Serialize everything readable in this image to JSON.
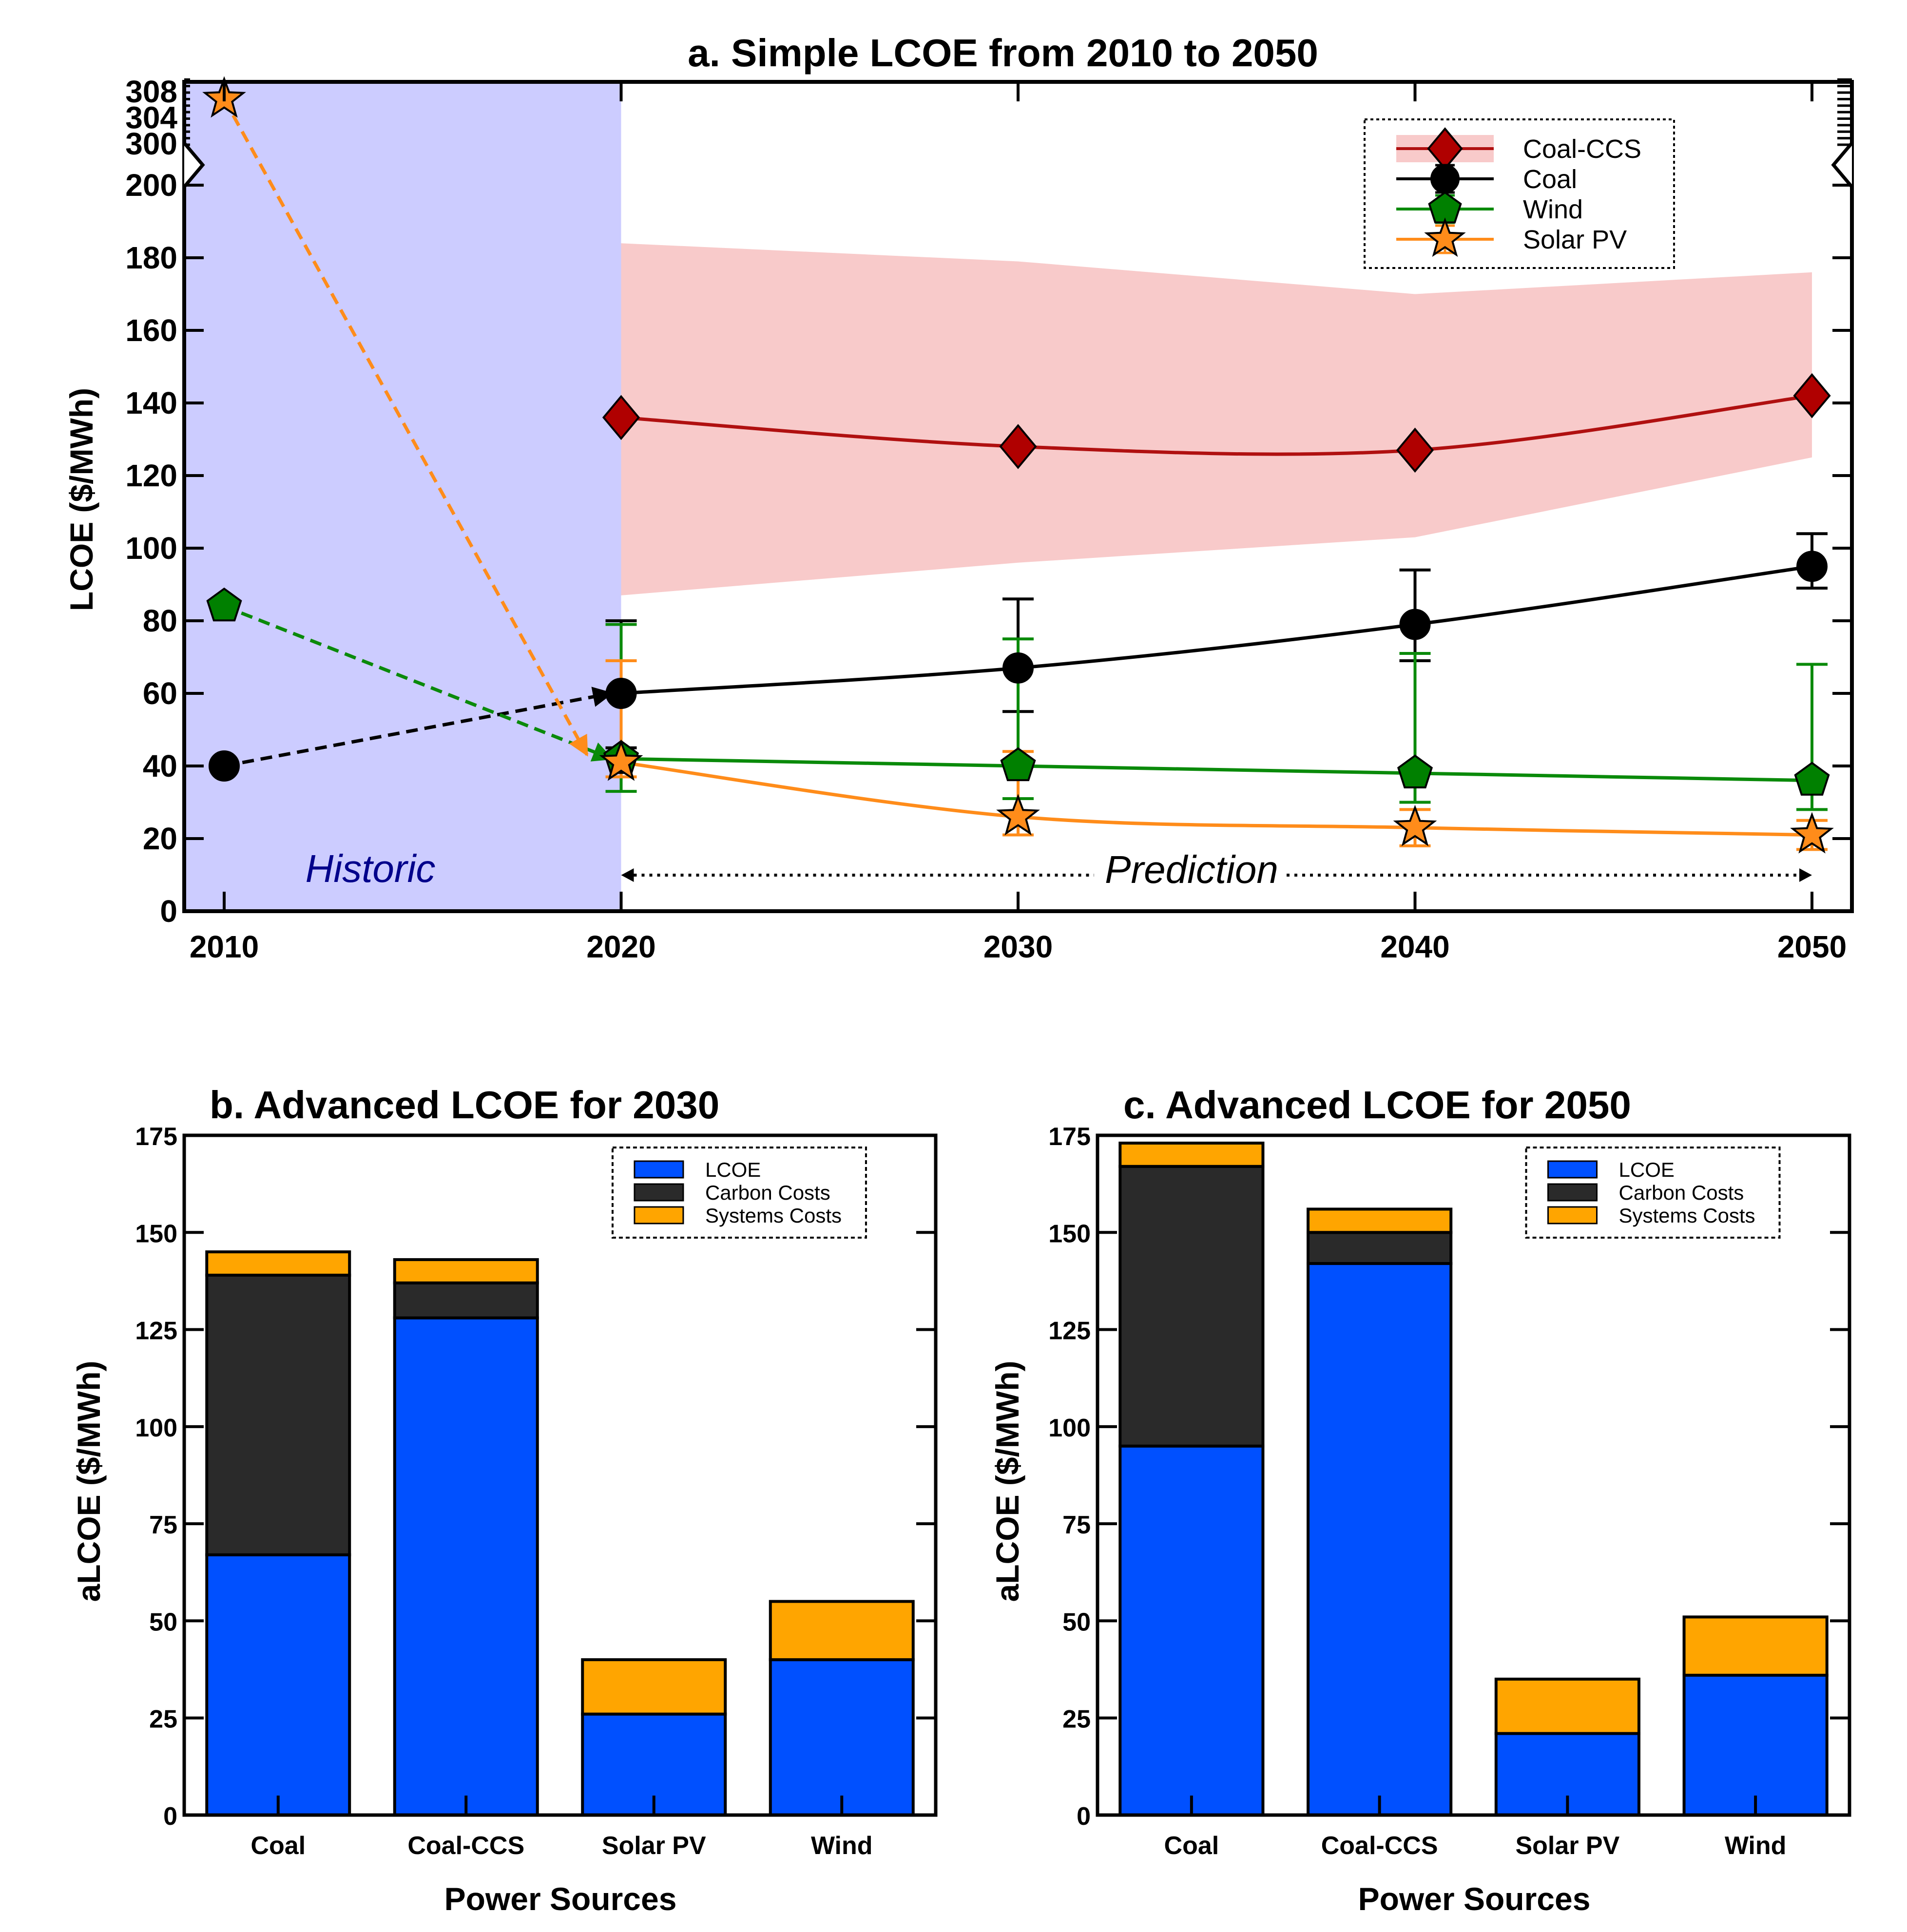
{
  "chart_data": [
    {
      "id": "a",
      "type": "line",
      "title": "a. Simple LCOE from 2010 to 2050",
      "xlabel": "",
      "ylabel": "LCOE ($/MWh)",
      "x_ticks": [
        "2010",
        "2020",
        "2030",
        "2040",
        "2050"
      ],
      "y_ticks": [
        "0",
        "20",
        "40",
        "60",
        "80",
        "100",
        "120",
        "140",
        "160",
        "180",
        "200",
        "300",
        "304",
        "308"
      ],
      "ylim": [
        0,
        200
      ],
      "y_break": {
        "lower_top": 200,
        "upper_range": [
          300,
          310
        ]
      },
      "regions": {
        "historic_label": "Historic",
        "prediction_label": "Prediction",
        "historic_range": [
          2010,
          2020
        ]
      },
      "series": [
        {
          "name": "Coal-CCS",
          "color": "#b01010",
          "marker": "diamond",
          "x": [
            2020,
            2030,
            2040,
            2050
          ],
          "values": [
            136,
            128,
            127,
            142
          ],
          "band_low": [
            87,
            96,
            103,
            125
          ],
          "band_high": [
            184,
            179,
            170,
            176
          ],
          "band_color": "#f8caca"
        },
        {
          "name": "Coal",
          "color": "#000000",
          "marker": "circle",
          "historic": {
            "x": [
              2010,
              2020
            ],
            "values": [
              40,
              60
            ]
          },
          "x": [
            2020,
            2030,
            2040,
            2050
          ],
          "values": [
            60,
            67,
            79,
            95
          ],
          "err_low": [
            45,
            55,
            69,
            89
          ],
          "err_high": [
            80,
            86,
            94,
            104
          ]
        },
        {
          "name": "Wind",
          "color": "#0a8a0a",
          "marker": "pentagon",
          "historic": {
            "x": [
              2010,
              2020
            ],
            "values": [
              84,
              42
            ]
          },
          "x": [
            2020,
            2030,
            2040,
            2050
          ],
          "values": [
            42,
            40,
            38,
            36
          ],
          "err_low": [
            33,
            31,
            30,
            28
          ],
          "err_high": [
            79,
            75,
            71,
            68
          ]
        },
        {
          "name": "Solar PV",
          "color": "#ff8c1a",
          "marker": "star",
          "historic": {
            "x": [
              2010,
              2020
            ],
            "values": [
              307,
              42
            ]
          },
          "x": [
            2020,
            2030,
            2040,
            2050
          ],
          "values": [
            41,
            26,
            23,
            21
          ],
          "err_low": [
            37,
            21,
            18,
            17
          ],
          "err_high": [
            69,
            44,
            28,
            25
          ]
        }
      ],
      "legend": [
        "Coal-CCS",
        "Coal",
        "Wind",
        "Solar PV"
      ]
    },
    {
      "id": "b",
      "type": "bar",
      "stacked": true,
      "title": "b. Advanced LCOE for 2030",
      "xlabel": "Power Sources",
      "ylabel": "aLCOE ($/MWh)",
      "categories": [
        "Coal",
        "Coal-CCS",
        "Solar PV",
        "Wind"
      ],
      "y_ticks": [
        "0",
        "25",
        "50",
        "75",
        "100",
        "125",
        "150",
        "175"
      ],
      "ylim": [
        0,
        175
      ],
      "series": [
        {
          "name": "LCOE",
          "color": "#0050ff",
          "values": [
            67,
            128,
            26,
            40
          ]
        },
        {
          "name": "Carbon Costs",
          "color": "#2a2a2a",
          "values": [
            72,
            9,
            0,
            0
          ]
        },
        {
          "name": "Systems Costs",
          "color": "#ffa500",
          "values": [
            6,
            6,
            14,
            15
          ]
        }
      ],
      "legend": [
        "LCOE",
        "Carbon Costs",
        "Systems Costs"
      ]
    },
    {
      "id": "c",
      "type": "bar",
      "stacked": true,
      "title": "c. Advanced LCOE for 2050",
      "xlabel": "Power Sources",
      "ylabel": "aLCOE ($/MWh)",
      "categories": [
        "Coal",
        "Coal-CCS",
        "Solar PV",
        "Wind"
      ],
      "y_ticks": [
        "0",
        "25",
        "50",
        "75",
        "100",
        "125",
        "150",
        "175"
      ],
      "ylim": [
        0,
        175
      ],
      "series": [
        {
          "name": "LCOE",
          "color": "#0050ff",
          "values": [
            95,
            142,
            21,
            36
          ]
        },
        {
          "name": "Carbon Costs",
          "color": "#2a2a2a",
          "values": [
            72,
            8,
            0,
            0
          ]
        },
        {
          "name": "Systems Costs",
          "color": "#ffa500",
          "values": [
            6,
            6,
            14,
            15
          ]
        }
      ],
      "legend": [
        "LCOE",
        "Carbon Costs",
        "Systems Costs"
      ]
    }
  ],
  "colors": {
    "historic_shade": "#ccccff",
    "historic_text": "#00008b"
  }
}
